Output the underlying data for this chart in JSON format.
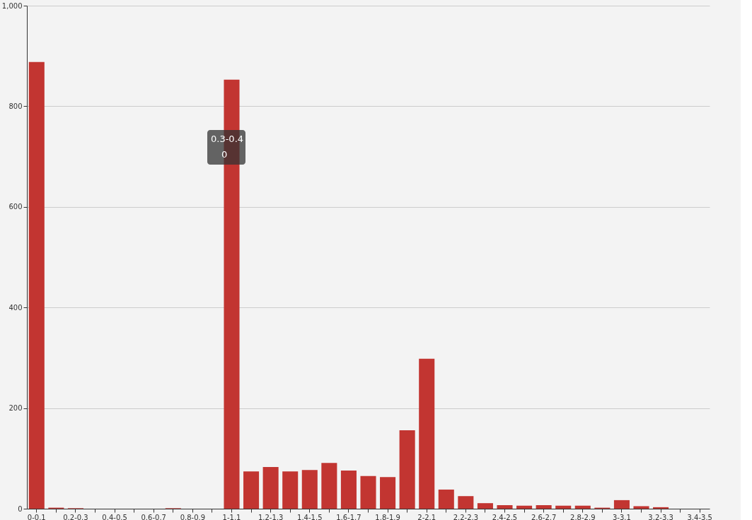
{
  "chart_data": {
    "type": "bar",
    "categories": [
      "0-0.1",
      null,
      "0.2-0.3",
      null,
      "0.4-0.5",
      null,
      "0.6-0.7",
      null,
      "0.8-0.9",
      null,
      "1-1.1",
      null,
      "1.2-1.3",
      null,
      "1.4-1.5",
      null,
      "1.6-1.7",
      null,
      "1.8-1.9",
      null,
      "2-2.1",
      null,
      "2.2-2.3",
      null,
      "2.4-2.5",
      null,
      "2.6-2.7",
      null,
      "2.8-2.9",
      null,
      "3-3.1",
      null,
      "3.2-3.3",
      null,
      "3.4-3.5"
    ],
    "values": [
      888,
      2,
      1,
      0,
      0,
      0,
      0,
      1,
      0,
      0,
      853,
      74,
      83,
      74,
      77,
      91,
      76,
      65,
      63,
      156,
      298,
      38,
      25,
      11,
      7,
      6,
      7,
      6,
      6,
      2,
      17,
      5,
      3,
      0,
      0
    ],
    "color": "#c23531",
    "ylim": [
      0,
      1000
    ],
    "yticks": [
      0,
      200,
      400,
      600,
      800,
      {
        "value": 1000,
        "label": "1,000"
      }
    ],
    "grid": "y",
    "annotations": [
      "0.3-0.4",
      "0"
    ]
  }
}
